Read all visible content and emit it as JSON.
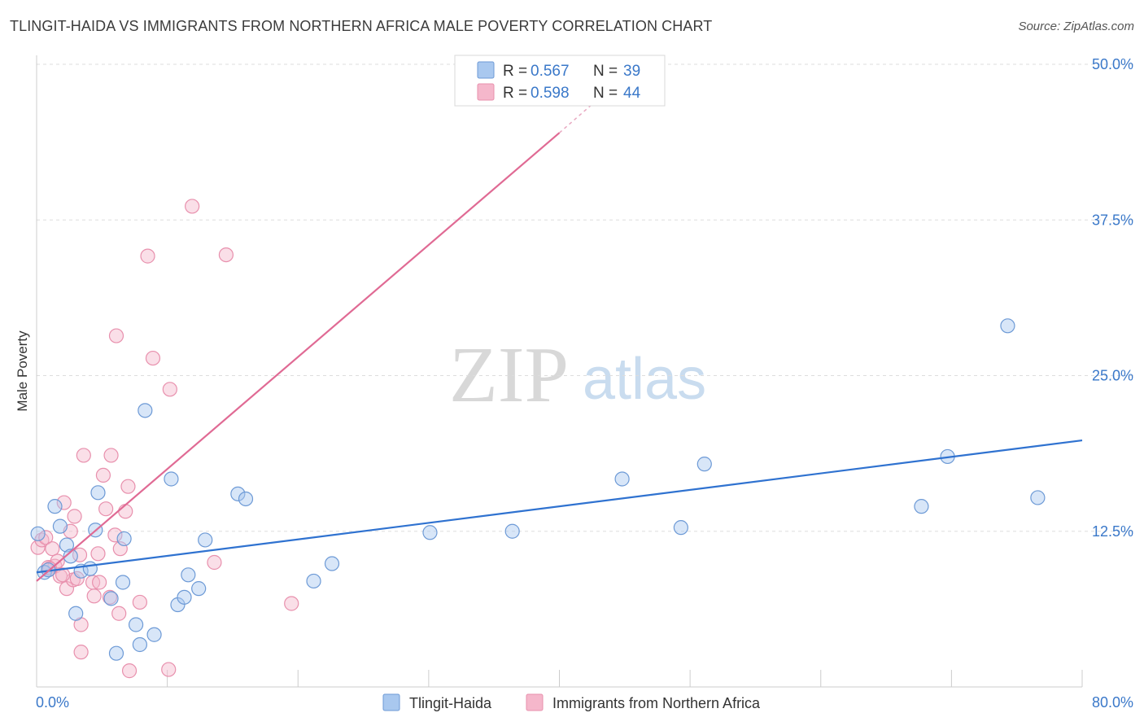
{
  "title": "TLINGIT-HAIDA VS IMMIGRANTS FROM NORTHERN AFRICA MALE POVERTY CORRELATION CHART",
  "source": "Source: ZipAtlas.com",
  "watermark": {
    "zip": "ZIP",
    "atlas": "atlas"
  },
  "colors": {
    "blue_fill": "#a9c8ef",
    "blue_stroke": "#6d9ad6",
    "blue_line": "#2f72d0",
    "pink_fill": "#f5b7cb",
    "pink_stroke": "#e890ad",
    "pink_line": "#e06a94",
    "grid": "#dddddd",
    "tick_text": "#3a78c9"
  },
  "legend": {
    "r_label": "R =",
    "n_label": "N =",
    "series": [
      {
        "r": "0.567",
        "n": "39"
      },
      {
        "r": "0.598",
        "n": "44"
      }
    ]
  },
  "chart_data": {
    "type": "scatter",
    "xlabel": "",
    "ylabel": "Male Poverty",
    "xlim": [
      0,
      80
    ],
    "ylim": [
      0,
      50
    ],
    "x_tick_labels": [
      "0.0%",
      "80.0%"
    ],
    "y_ticks": [
      {
        "value": 12.5,
        "label": "12.5%"
      },
      {
        "value": 25,
        "label": "25.0%"
      },
      {
        "value": 37.5,
        "label": "37.5%"
      },
      {
        "value": 50,
        "label": "50.0%"
      }
    ],
    "series": [
      {
        "name": "Tlingit-Haida",
        "trend": {
          "x0": 0,
          "y0": 9.2,
          "x1": 80,
          "y1": 19.8
        },
        "points": [
          [
            0.1,
            12.3
          ],
          [
            0.6,
            9.2
          ],
          [
            1.4,
            14.5
          ],
          [
            1.8,
            12.9
          ],
          [
            2.3,
            11.4
          ],
          [
            2.6,
            10.5
          ],
          [
            3.0,
            5.9
          ],
          [
            3.4,
            9.3
          ],
          [
            4.1,
            9.5
          ],
          [
            4.5,
            12.6
          ],
          [
            4.7,
            15.6
          ],
          [
            5.7,
            7.1
          ],
          [
            6.1,
            2.7
          ],
          [
            6.6,
            8.4
          ],
          [
            6.7,
            11.9
          ],
          [
            7.6,
            5.0
          ],
          [
            7.9,
            3.4
          ],
          [
            8.3,
            22.2
          ],
          [
            9.0,
            4.2
          ],
          [
            10.3,
            16.7
          ],
          [
            10.8,
            6.6
          ],
          [
            11.3,
            7.2
          ],
          [
            11.6,
            9.0
          ],
          [
            12.4,
            7.9
          ],
          [
            12.9,
            11.8
          ],
          [
            15.4,
            15.5
          ],
          [
            16.0,
            15.1
          ],
          [
            21.2,
            8.5
          ],
          [
            22.6,
            9.9
          ],
          [
            30.1,
            12.4
          ],
          [
            36.4,
            12.5
          ],
          [
            44.8,
            16.7
          ],
          [
            49.3,
            12.8
          ],
          [
            51.1,
            17.9
          ],
          [
            67.7,
            14.5
          ],
          [
            69.7,
            18.5
          ],
          [
            74.3,
            29.0
          ],
          [
            76.6,
            15.2
          ],
          [
            0.9,
            9.4
          ]
        ]
      },
      {
        "name": "Immigrants from Northern Africa",
        "trend": {
          "x0": 0,
          "y0": 8.5,
          "x1": 40,
          "y1": 44.5
        },
        "trend_dashed": {
          "x0": 40,
          "y0": 44.5,
          "x1": 43.5,
          "y1": 47.7
        },
        "points": [
          [
            0.1,
            11.2
          ],
          [
            0.4,
            11.8
          ],
          [
            0.7,
            12.0
          ],
          [
            0.9,
            9.6
          ],
          [
            1.2,
            11.1
          ],
          [
            1.4,
            9.7
          ],
          [
            1.6,
            10.1
          ],
          [
            1.8,
            8.9
          ],
          [
            2.1,
            14.8
          ],
          [
            2.3,
            7.9
          ],
          [
            2.6,
            12.5
          ],
          [
            2.8,
            8.6
          ],
          [
            2.9,
            13.7
          ],
          [
            3.1,
            8.7
          ],
          [
            3.3,
            10.6
          ],
          [
            3.4,
            5.0
          ],
          [
            3.4,
            2.8
          ],
          [
            3.6,
            18.6
          ],
          [
            4.3,
            8.4
          ],
          [
            4.4,
            7.3
          ],
          [
            4.7,
            10.7
          ],
          [
            5.1,
            17.0
          ],
          [
            5.3,
            14.3
          ],
          [
            5.6,
            7.2
          ],
          [
            5.7,
            18.6
          ],
          [
            6.0,
            12.2
          ],
          [
            6.1,
            28.2
          ],
          [
            6.3,
            5.9
          ],
          [
            6.4,
            11.1
          ],
          [
            6.8,
            14.1
          ],
          [
            7.0,
            16.1
          ],
          [
            7.1,
            1.3
          ],
          [
            7.9,
            6.8
          ],
          [
            8.5,
            34.6
          ],
          [
            8.9,
            26.4
          ],
          [
            10.1,
            1.4
          ],
          [
            10.2,
            23.9
          ],
          [
            11.9,
            38.6
          ],
          [
            13.6,
            10.0
          ],
          [
            14.5,
            34.7
          ],
          [
            19.5,
            6.7
          ],
          [
            1.0,
            9.5
          ],
          [
            2.0,
            9.0
          ],
          [
            4.8,
            8.4
          ]
        ]
      }
    ]
  },
  "bottom_legend": [
    {
      "label": "Tlingit-Haida"
    },
    {
      "label": "Immigrants from Northern Africa"
    }
  ]
}
